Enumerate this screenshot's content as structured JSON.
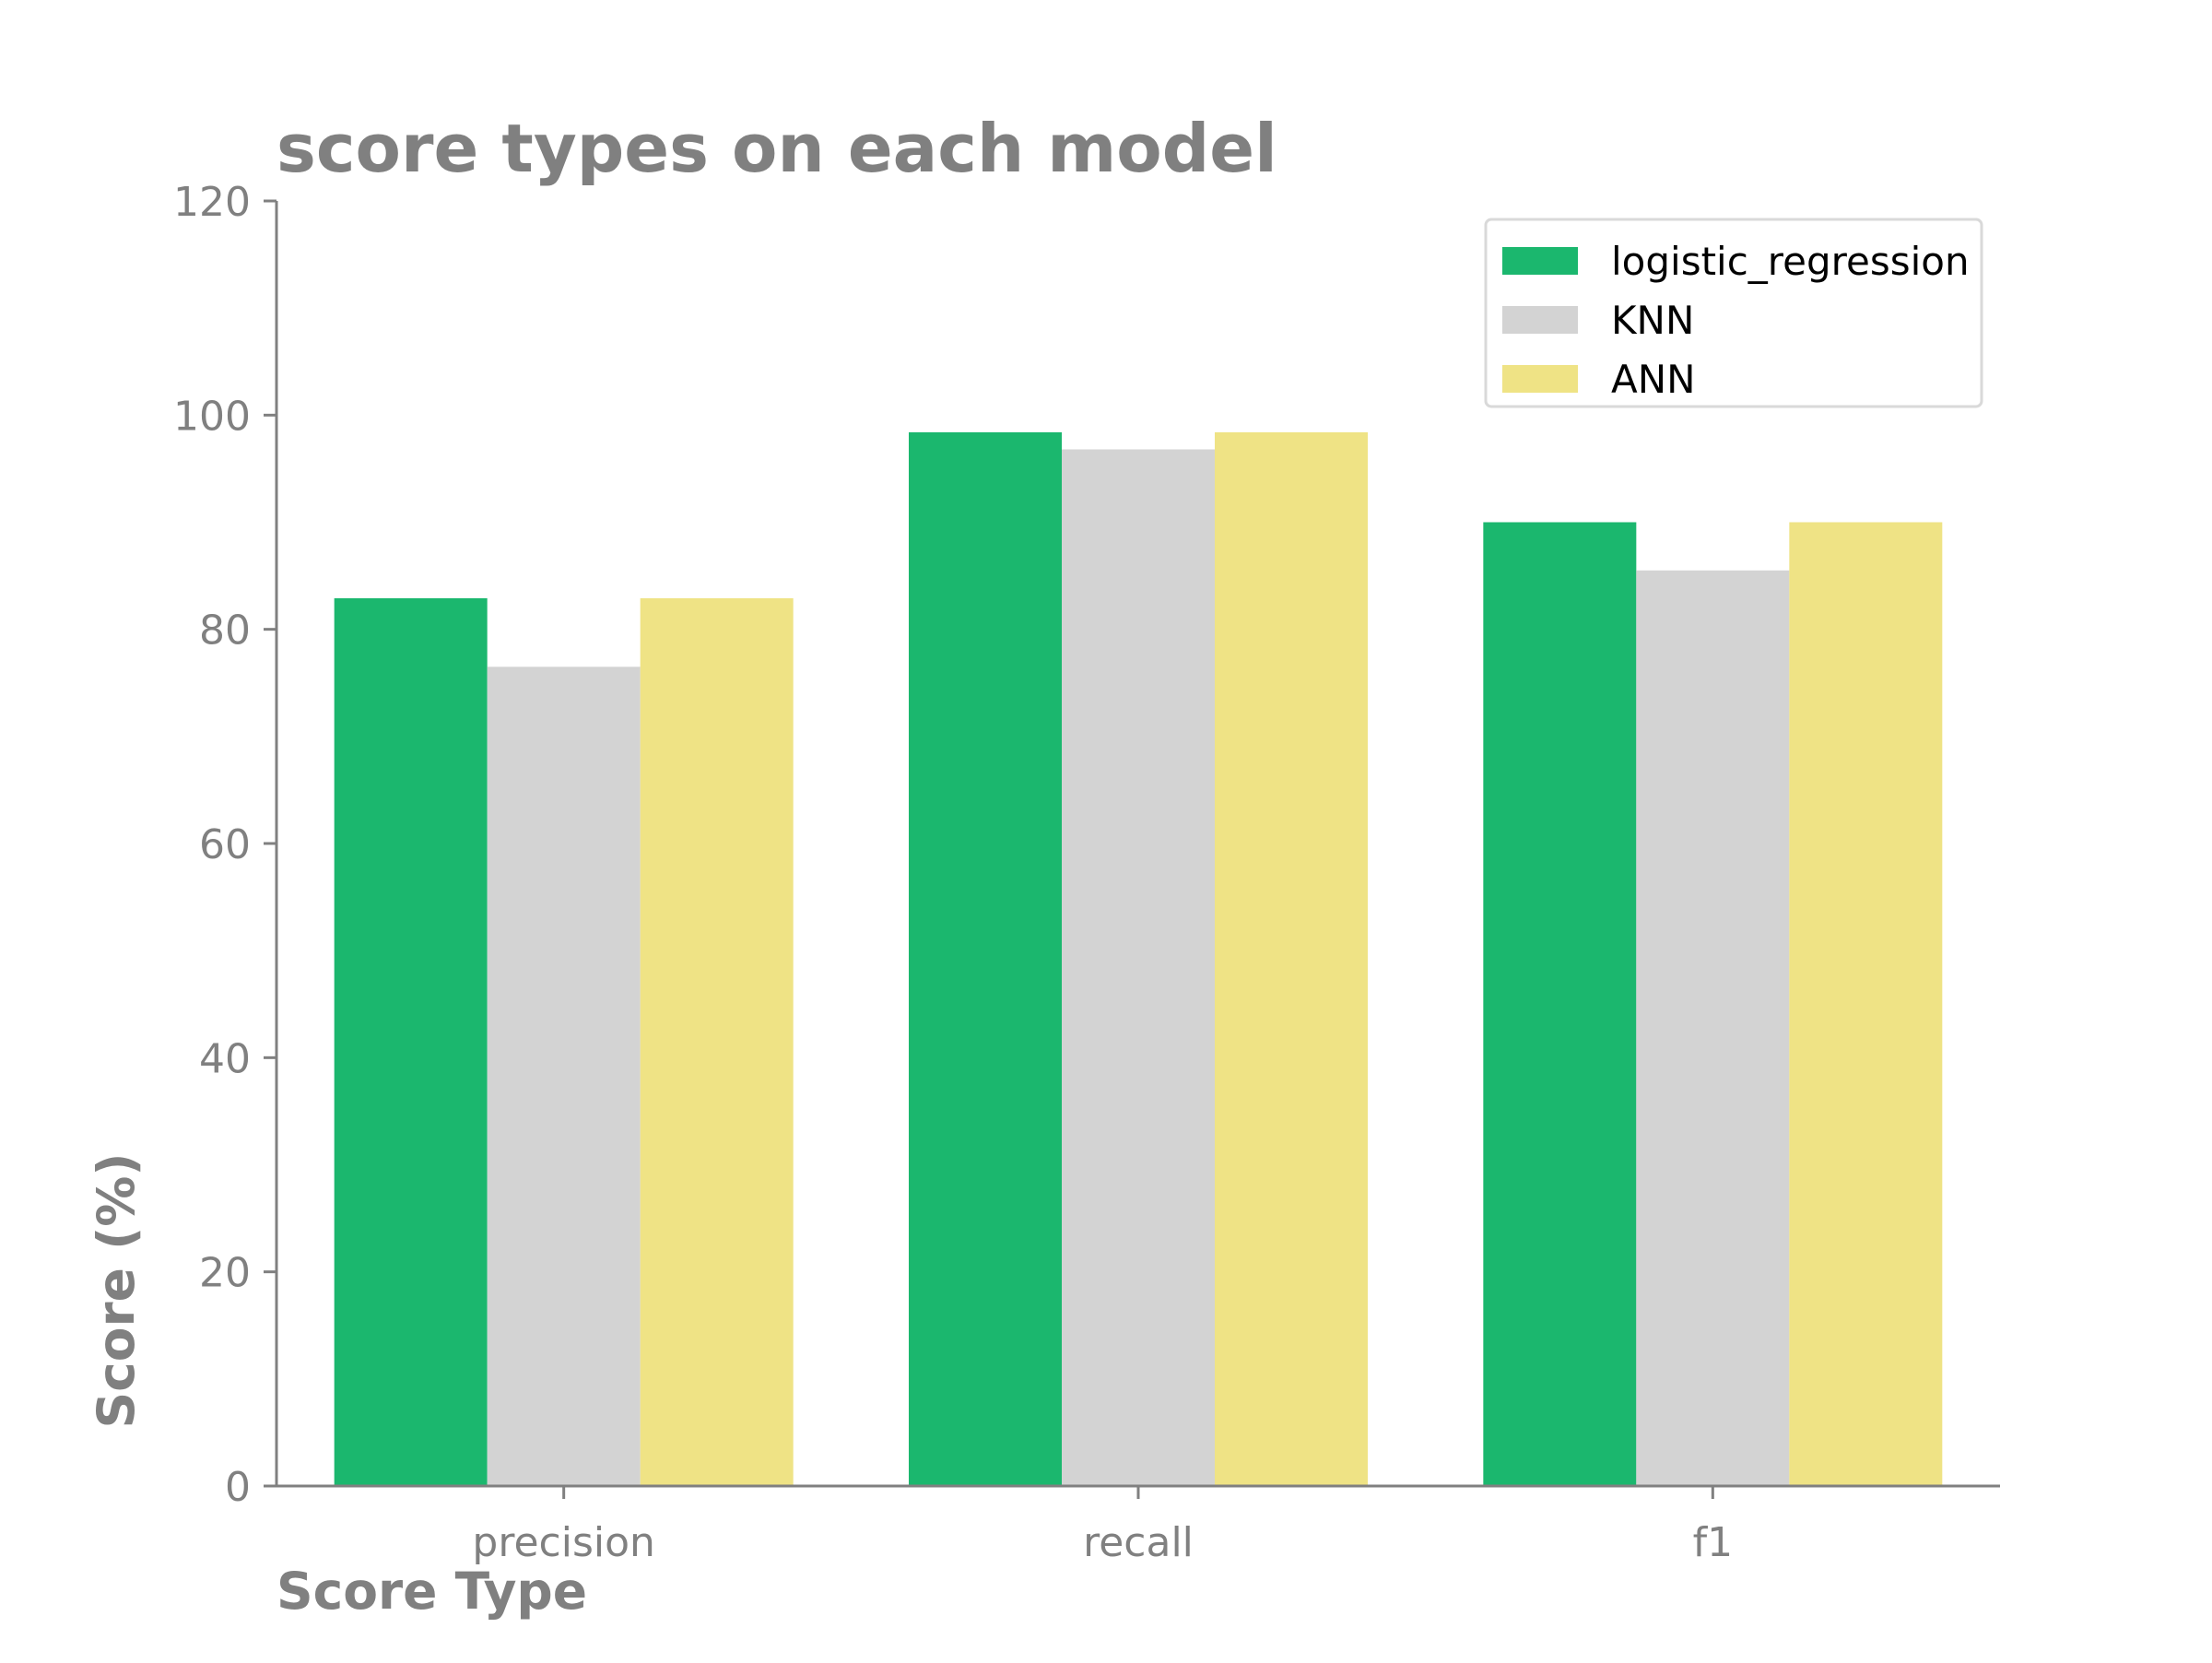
{
  "chart_data": {
    "type": "bar",
    "title": "score types on each model",
    "xlabel": "Score Type",
    "ylabel": "Score (%)",
    "categories": [
      "precision",
      "recall",
      "f1"
    ],
    "ylim": [
      0,
      120
    ],
    "yticks": [
      "0",
      "20",
      "40",
      "60",
      "80",
      "100",
      "120"
    ],
    "grid": false,
    "legend_position": "top-right",
    "series": [
      {
        "name": "logistic_regression",
        "color": "#1bb76e",
        "values": [
          82.9,
          98.4,
          90.0
        ]
      },
      {
        "name": "KNN",
        "color": "#d3d3d3",
        "values": [
          76.5,
          96.8,
          85.5
        ]
      },
      {
        "name": "ANN",
        "color": "#efe385",
        "values": [
          82.9,
          98.4,
          90.0
        ]
      }
    ],
    "colors": {
      "text": "#808080",
      "axis": "#808080",
      "legend_text": "#000000"
    }
  }
}
